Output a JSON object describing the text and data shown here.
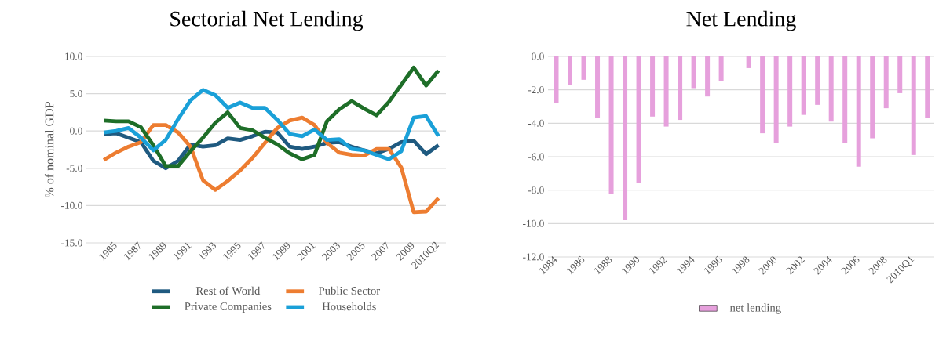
{
  "chart_data": [
    {
      "type": "line",
      "title": "Sectorial Net Lending",
      "ylabel": "% of nominal GDP",
      "categories": [
        null,
        "1985",
        null,
        "1987",
        null,
        "1989",
        null,
        "1991",
        null,
        "1993",
        null,
        "1995",
        null,
        "1997",
        null,
        "1999",
        null,
        "2001",
        null,
        "2003",
        null,
        "2005",
        null,
        "2007",
        null,
        "2009",
        null,
        "2010Q2"
      ],
      "series": [
        {
          "name": "Rest of World",
          "color": "#1f5a80",
          "values": [
            -0.4,
            -0.3,
            -0.9,
            -1.5,
            -4.0,
            -5.0,
            -4.0,
            -1.8,
            -2.1,
            -1.9,
            -1.0,
            -1.2,
            -0.7,
            -0.1,
            -0.2,
            -2.1,
            -2.4,
            -2.1,
            -1.6,
            -1.5,
            -2.1,
            -2.6,
            -3.0,
            -2.4,
            -1.5,
            -1.3,
            -3.1,
            -1.9
          ]
        },
        {
          "name": "Public Sector",
          "color": "#ed7d31",
          "values": [
            -3.9,
            -2.9,
            -2.1,
            -1.5,
            0.8,
            0.8,
            -0.2,
            -2.1,
            -6.6,
            -7.9,
            -6.7,
            -5.3,
            -3.6,
            -1.6,
            0.4,
            1.4,
            1.8,
            0.8,
            -1.6,
            -2.9,
            -3.2,
            -3.3,
            -2.4,
            -2.4,
            -4.9,
            -10.9,
            -10.8,
            -9.0
          ]
        },
        {
          "name": "Private Companies",
          "color": "#1e6e28",
          "values": [
            1.4,
            1.3,
            1.3,
            0.5,
            -1.9,
            -4.7,
            -4.7,
            -2.7,
            -0.9,
            1.1,
            2.5,
            0.4,
            0.1,
            -0.9,
            -1.8,
            -3.0,
            -3.8,
            -3.2,
            1.3,
            2.9,
            4.0,
            3.0,
            2.1,
            3.9,
            6.2,
            8.5,
            6.1,
            8.1
          ]
        },
        {
          "name": "Households",
          "color": "#1aa0d8",
          "values": [
            -0.2,
            0.0,
            0.4,
            -0.9,
            -2.6,
            -1.2,
            1.6,
            4.1,
            5.5,
            4.8,
            3.1,
            3.8,
            3.1,
            3.1,
            1.5,
            -0.4,
            -0.7,
            0.2,
            -1.2,
            -1.1,
            -2.4,
            -2.6,
            -3.2,
            -3.8,
            -2.7,
            1.8,
            2.0,
            -0.7
          ]
        }
      ],
      "ylim": [
        -15,
        10
      ],
      "yticks": [
        {
          "value": -15,
          "label": "-15.0"
        },
        {
          "value": -10,
          "label": "-10.0"
        },
        {
          "value": -5,
          "label": "-5.0"
        },
        {
          "value": 0,
          "label": "0.0"
        },
        {
          "value": 5,
          "label": "5.0"
        },
        {
          "value": 10,
          "label": "10.0"
        }
      ],
      "grid": "y",
      "legend": "bottom"
    },
    {
      "type": "bar",
      "title": "Net Lending",
      "categories": [
        "1984",
        null,
        "1986",
        null,
        "1988",
        null,
        "1990",
        null,
        "1992",
        null,
        "1994",
        null,
        "1996",
        null,
        "1998",
        null,
        "2000",
        null,
        "2002",
        null,
        "2004",
        null,
        "2006",
        null,
        "2008",
        null,
        "2010Q1",
        null
      ],
      "series": [
        {
          "name": "net lending",
          "color": "#e6a0dc",
          "values": [
            -2.8,
            -1.7,
            -1.4,
            -3.7,
            -8.2,
            -9.8,
            -7.6,
            -3.6,
            -4.2,
            -3.8,
            -1.9,
            -2.4,
            -1.5,
            null,
            -0.7,
            -4.6,
            -5.2,
            -4.2,
            -3.5,
            -2.9,
            -3.9,
            -5.2,
            -6.6,
            -4.9,
            -3.1,
            -2.2,
            -5.9,
            -3.7
          ]
        }
      ],
      "ylim": [
        -12,
        0
      ],
      "yticks": [
        {
          "value": -12,
          "label": "-12.0"
        },
        {
          "value": -10,
          "label": "-10.0"
        },
        {
          "value": -8,
          "label": "-8.0"
        },
        {
          "value": -6,
          "label": "-6.0"
        },
        {
          "value": -4,
          "label": "-4.0"
        },
        {
          "value": -2,
          "label": "-2.0"
        },
        {
          "value": 0,
          "label": "0.0"
        }
      ],
      "grid": "y",
      "legend": "bottom"
    }
  ]
}
